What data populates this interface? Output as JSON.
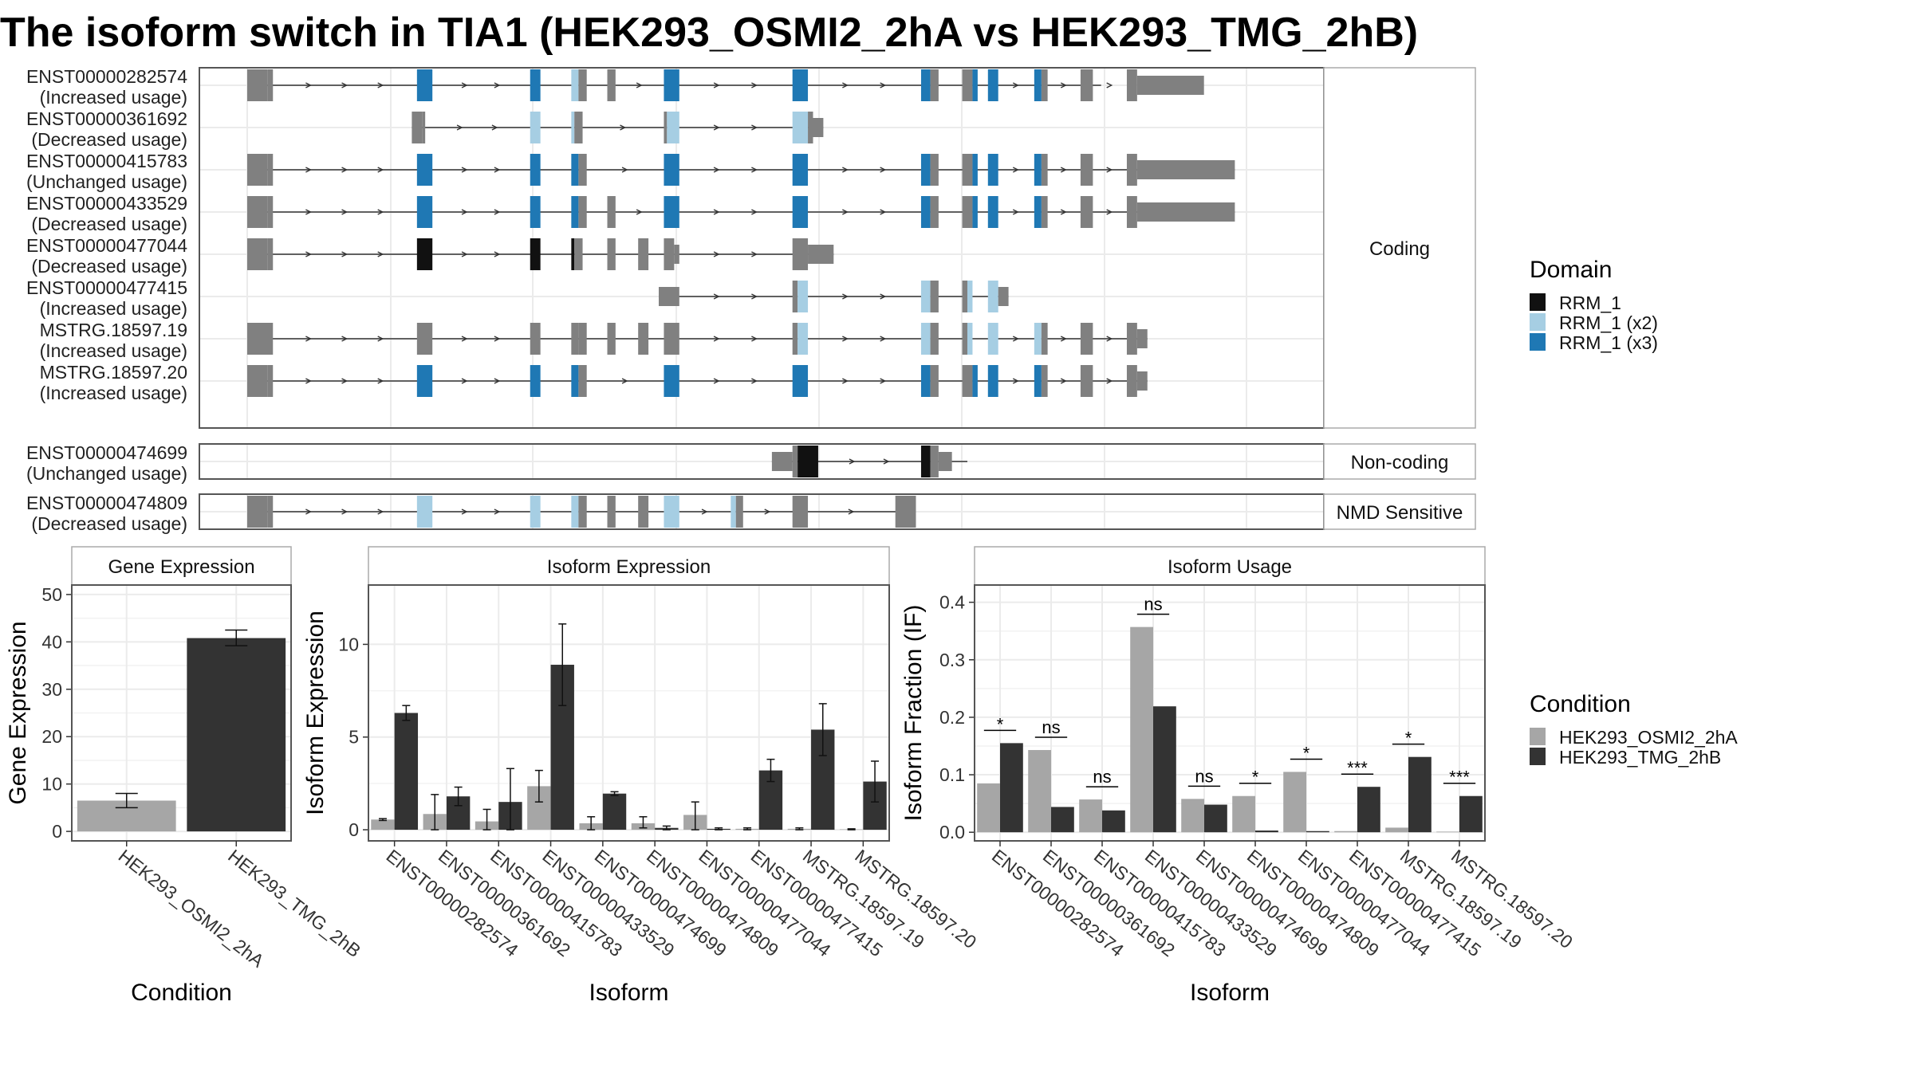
{
  "title": "The isoform switch in TIA1 (HEK293_OSMI2_2hA vs HEK293_TMG_2hB)",
  "colors": {
    "exon": "#808080",
    "RRM_1": "#111111",
    "RRM_1 (x2)": "#a6cee3",
    "RRM_1 (x3)": "#1f78b4",
    "HEK293_OSMI2_2hA": "#a6a6a6",
    "HEK293_TMG_2hB": "#333333",
    "panel_border": "#555555",
    "grid": "#ebebeb"
  },
  "structure": {
    "coding": {
      "label": "Coding",
      "transcripts": [
        {
          "id": "ENST00000282574",
          "usage": "(Increased usage)",
          "start": 0.0,
          "end": 0.83,
          "exons": [
            [
              0.0,
              0.02,
              "n"
            ],
            [
              0.02,
              0.025,
              "n"
            ],
            [
              0.165,
              0.18,
              "R3"
            ],
            [
              0.275,
              0.285,
              "R3"
            ],
            [
              0.315,
              0.322,
              "R2"
            ],
            [
              0.322,
              0.33,
              "n"
            ],
            [
              0.35,
              0.358,
              "n"
            ],
            [
              0.405,
              0.42,
              "R3"
            ],
            [
              0.53,
              0.545,
              "R3"
            ],
            [
              0.655,
              0.664,
              "R3"
            ],
            [
              0.664,
              0.672,
              "n"
            ],
            [
              0.695,
              0.705,
              "n"
            ],
            [
              0.705,
              0.71,
              "R3"
            ],
            [
              0.72,
              0.73,
              "R3"
            ],
            [
              0.765,
              0.772,
              "R3"
            ],
            [
              0.772,
              0.778,
              "n"
            ],
            [
              0.81,
              0.822,
              "n"
            ],
            [
              0.855,
              0.865,
              "n"
            ],
            [
              0.865,
              0.93,
              "u"
            ]
          ]
        },
        {
          "id": "ENST00000361692",
          "usage": "(Decreased usage)",
          "start": 0.16,
          "end": 0.56,
          "exons": [
            [
              0.16,
              0.17,
              "n"
            ],
            [
              0.17,
              0.173,
              "n"
            ],
            [
              0.275,
              0.285,
              "R2"
            ],
            [
              0.315,
              0.318,
              "R2"
            ],
            [
              0.318,
              0.326,
              "n"
            ],
            [
              0.405,
              0.408,
              "n"
            ],
            [
              0.408,
              0.42,
              "R2"
            ],
            [
              0.53,
              0.545,
              "R2"
            ],
            [
              0.545,
              0.55,
              "n"
            ],
            [
              0.55,
              0.56,
              "u"
            ]
          ]
        },
        {
          "id": "ENST00000415783",
          "usage": "(Unchanged usage)",
          "start": 0.0,
          "end": 0.96,
          "exons": [
            [
              0.0,
              0.02,
              "n"
            ],
            [
              0.02,
              0.025,
              "n"
            ],
            [
              0.165,
              0.18,
              "R3"
            ],
            [
              0.275,
              0.285,
              "R3"
            ],
            [
              0.315,
              0.322,
              "R3"
            ],
            [
              0.322,
              0.33,
              "n"
            ],
            [
              0.405,
              0.42,
              "R3"
            ],
            [
              0.53,
              0.545,
              "R3"
            ],
            [
              0.655,
              0.664,
              "R3"
            ],
            [
              0.664,
              0.672,
              "n"
            ],
            [
              0.695,
              0.705,
              "n"
            ],
            [
              0.705,
              0.71,
              "R3"
            ],
            [
              0.72,
              0.73,
              "R3"
            ],
            [
              0.765,
              0.772,
              "R3"
            ],
            [
              0.772,
              0.778,
              "n"
            ],
            [
              0.81,
              0.822,
              "n"
            ],
            [
              0.855,
              0.865,
              "n"
            ],
            [
              0.865,
              0.96,
              "u"
            ]
          ]
        },
        {
          "id": "ENST00000433529",
          "usage": "(Decreased usage)",
          "start": 0.0,
          "end": 0.96,
          "exons": [
            [
              0.0,
              0.02,
              "n"
            ],
            [
              0.02,
              0.025,
              "n"
            ],
            [
              0.165,
              0.18,
              "R3"
            ],
            [
              0.275,
              0.285,
              "R3"
            ],
            [
              0.315,
              0.322,
              "R3"
            ],
            [
              0.322,
              0.33,
              "n"
            ],
            [
              0.35,
              0.358,
              "n"
            ],
            [
              0.405,
              0.42,
              "R3"
            ],
            [
              0.53,
              0.545,
              "R3"
            ],
            [
              0.655,
              0.664,
              "R3"
            ],
            [
              0.664,
              0.672,
              "n"
            ],
            [
              0.695,
              0.705,
              "n"
            ],
            [
              0.705,
              0.71,
              "R3"
            ],
            [
              0.72,
              0.73,
              "R3"
            ],
            [
              0.765,
              0.772,
              "R3"
            ],
            [
              0.772,
              0.778,
              "n"
            ],
            [
              0.81,
              0.822,
              "n"
            ],
            [
              0.855,
              0.865,
              "n"
            ],
            [
              0.865,
              0.96,
              "u"
            ]
          ]
        },
        {
          "id": "ENST00000477044",
          "usage": "(Decreased usage)",
          "start": 0.0,
          "end": 0.57,
          "exons": [
            [
              0.0,
              0.02,
              "n"
            ],
            [
              0.02,
              0.025,
              "n"
            ],
            [
              0.165,
              0.18,
              "R1"
            ],
            [
              0.275,
              0.285,
              "R1"
            ],
            [
              0.315,
              0.318,
              "R1"
            ],
            [
              0.318,
              0.326,
              "n"
            ],
            [
              0.35,
              0.358,
              "n"
            ],
            [
              0.38,
              0.39,
              "n"
            ],
            [
              0.405,
              0.415,
              "n"
            ],
            [
              0.415,
              0.42,
              "u"
            ],
            [
              0.53,
              0.545,
              "n"
            ],
            [
              0.545,
              0.57,
              "u"
            ]
          ]
        },
        {
          "id": "ENST00000477415",
          "usage": "(Increased usage)",
          "start": 0.4,
          "end": 0.74,
          "exons": [
            [
              0.4,
              0.42,
              "u"
            ],
            [
              0.53,
              0.535,
              "n"
            ],
            [
              0.535,
              0.545,
              "R2"
            ],
            [
              0.655,
              0.664,
              "R2"
            ],
            [
              0.664,
              0.672,
              "n"
            ],
            [
              0.695,
              0.7,
              "n"
            ],
            [
              0.7,
              0.705,
              "R2"
            ],
            [
              0.72,
              0.73,
              "R2"
            ],
            [
              0.73,
              0.74,
              "u"
            ]
          ]
        },
        {
          "id": "MSTRG.18597.19",
          "usage": "(Increased usage)",
          "start": 0.0,
          "end": 0.875,
          "exons": [
            [
              0.0,
              0.025,
              "n"
            ],
            [
              0.165,
              0.18,
              "n"
            ],
            [
              0.275,
              0.285,
              "n"
            ],
            [
              0.315,
              0.322,
              "n"
            ],
            [
              0.322,
              0.33,
              "n"
            ],
            [
              0.35,
              0.358,
              "n"
            ],
            [
              0.38,
              0.39,
              "n"
            ],
            [
              0.405,
              0.42,
              "n"
            ],
            [
              0.53,
              0.535,
              "n"
            ],
            [
              0.535,
              0.545,
              "R2"
            ],
            [
              0.655,
              0.664,
              "R2"
            ],
            [
              0.664,
              0.672,
              "n"
            ],
            [
              0.695,
              0.7,
              "n"
            ],
            [
              0.7,
              0.705,
              "R2"
            ],
            [
              0.72,
              0.73,
              "R2"
            ],
            [
              0.765,
              0.772,
              "R2"
            ],
            [
              0.772,
              0.778,
              "n"
            ],
            [
              0.81,
              0.822,
              "n"
            ],
            [
              0.855,
              0.865,
              "n"
            ],
            [
              0.865,
              0.875,
              "u"
            ]
          ]
        },
        {
          "id": "MSTRG.18597.20",
          "usage": "(Increased usage)",
          "start": 0.0,
          "end": 0.875,
          "exons": [
            [
              0.0,
              0.02,
              "n"
            ],
            [
              0.02,
              0.025,
              "n"
            ],
            [
              0.165,
              0.18,
              "R3"
            ],
            [
              0.275,
              0.285,
              "R3"
            ],
            [
              0.315,
              0.322,
              "R3"
            ],
            [
              0.322,
              0.33,
              "n"
            ],
            [
              0.405,
              0.42,
              "R3"
            ],
            [
              0.53,
              0.545,
              "R3"
            ],
            [
              0.655,
              0.664,
              "R3"
            ],
            [
              0.664,
              0.672,
              "n"
            ],
            [
              0.695,
              0.705,
              "n"
            ],
            [
              0.705,
              0.71,
              "R3"
            ],
            [
              0.72,
              0.73,
              "R3"
            ],
            [
              0.765,
              0.772,
              "R3"
            ],
            [
              0.772,
              0.778,
              "n"
            ],
            [
              0.81,
              0.822,
              "n"
            ],
            [
              0.855,
              0.865,
              "n"
            ],
            [
              0.865,
              0.875,
              "u"
            ]
          ]
        }
      ]
    },
    "noncoding": {
      "label": "Non-coding",
      "transcripts": [
        {
          "id": "ENST00000474699",
          "usage": "(Unchanged usage)",
          "start": 0.51,
          "end": 0.7,
          "exons": [
            [
              0.51,
              0.53,
              "u"
            ],
            [
              0.53,
              0.535,
              "n"
            ],
            [
              0.535,
              0.555,
              "R1"
            ],
            [
              0.655,
              0.664,
              "R1"
            ],
            [
              0.664,
              0.672,
              "n"
            ],
            [
              0.672,
              0.685,
              "u"
            ]
          ]
        }
      ]
    },
    "nmd": {
      "label": "NMD Sensitive",
      "transcripts": [
        {
          "id": "ENST00000474809",
          "usage": "(Decreased usage)",
          "start": 0.0,
          "end": 0.65,
          "exons": [
            [
              0.0,
              0.02,
              "n"
            ],
            [
              0.02,
              0.025,
              "n"
            ],
            [
              0.165,
              0.18,
              "R2"
            ],
            [
              0.275,
              0.285,
              "R2"
            ],
            [
              0.315,
              0.322,
              "R2"
            ],
            [
              0.322,
              0.33,
              "n"
            ],
            [
              0.35,
              0.358,
              "n"
            ],
            [
              0.38,
              0.39,
              "n"
            ],
            [
              0.405,
              0.42,
              "R2"
            ],
            [
              0.47,
              0.475,
              "R2"
            ],
            [
              0.475,
              0.482,
              "n"
            ],
            [
              0.53,
              0.545,
              "n"
            ],
            [
              0.63,
              0.65,
              "n"
            ]
          ]
        }
      ]
    }
  },
  "domain_legend": {
    "title": "Domain",
    "entries": [
      "RRM_1",
      "RRM_1 (x2)",
      "RRM_1 (x3)"
    ]
  },
  "condition_legend": {
    "title": "Condition",
    "entries": [
      "HEK293_OSMI2_2hA",
      "HEK293_TMG_2hB"
    ]
  },
  "chart_data": [
    {
      "type": "bar",
      "title": "Gene Expression",
      "xlabel": "Condition",
      "ylabel": "Gene Expression",
      "categories": [
        "HEK293_OSMI2_2hA",
        "HEK293_TMG_2hB"
      ],
      "values": [
        6.5,
        40.8
      ],
      "errors": [
        [
          5.0,
          8.0
        ],
        [
          39.2,
          42.5
        ]
      ],
      "ylim": [
        -2,
        52
      ],
      "yticks": [
        0,
        10,
        20,
        30,
        40,
        50
      ]
    },
    {
      "type": "bar",
      "title": "Isoform Expression",
      "xlabel": "Isoform",
      "ylabel": "Isoform Expression",
      "categories": [
        "ENST00000282574",
        "ENST00000361692",
        "ENST00000415783",
        "ENST00000433529",
        "ENST00000474699",
        "ENST00000474809",
        "ENST00000477044",
        "ENST00000477415",
        "MSTRG.18597.19",
        "MSTRG.18597.20"
      ],
      "series": [
        {
          "name": "HEK293_OSMI2_2hA",
          "values": [
            0.55,
            0.85,
            0.45,
            2.35,
            0.35,
            0.35,
            0.8,
            0.05,
            0.05,
            0.02
          ],
          "errors": [
            [
              0.5,
              0.6
            ],
            [
              0.0,
              1.9
            ],
            [
              0.0,
              1.1
            ],
            [
              1.5,
              3.2
            ],
            [
              0.0,
              0.7
            ],
            [
              0.1,
              0.7
            ],
            [
              0.0,
              1.5
            ],
            [
              0.0,
              0.1
            ],
            [
              0.0,
              0.1
            ],
            [
              0.0,
              0.05
            ]
          ]
        },
        {
          "name": "HEK293_TMG_2hB",
          "values": [
            6.3,
            1.8,
            1.5,
            8.9,
            1.95,
            0.1,
            0.05,
            3.2,
            5.4,
            2.6
          ],
          "errors": [
            [
              5.9,
              6.7
            ],
            [
              1.3,
              2.3
            ],
            [
              0.0,
              3.3
            ],
            [
              6.7,
              11.1
            ],
            [
              1.85,
              2.05
            ],
            [
              0.0,
              0.2
            ],
            [
              0.0,
              0.1
            ],
            [
              2.6,
              3.8
            ],
            [
              4.0,
              6.8
            ],
            [
              1.5,
              3.7
            ]
          ]
        }
      ],
      "ylim": [
        -0.6,
        13.2
      ],
      "yticks": [
        0,
        5,
        10
      ]
    },
    {
      "type": "bar",
      "title": "Isoform Usage",
      "xlabel": "Isoform",
      "ylabel": "Isoform Fraction (IF)",
      "categories": [
        "ENST00000282574",
        "ENST00000361692",
        "ENST00000415783",
        "ENST00000433529",
        "ENST00000474699",
        "ENST00000474809",
        "ENST00000477044",
        "ENST00000477415",
        "MSTRG.18597.19",
        "MSTRG.18597.20"
      ],
      "series": [
        {
          "name": "HEK293_OSMI2_2hA",
          "values": [
            0.085,
            0.143,
            0.057,
            0.357,
            0.058,
            0.063,
            0.105,
            0.002,
            0.008,
            0.001
          ]
        },
        {
          "name": "HEK293_TMG_2hB",
          "values": [
            0.155,
            0.044,
            0.038,
            0.219,
            0.048,
            0.003,
            0.002,
            0.079,
            0.131,
            0.063
          ]
        }
      ],
      "significance": [
        "*",
        "ns",
        "ns",
        "ns",
        "ns",
        "*",
        "*",
        "***",
        "*",
        "***"
      ],
      "ylim": [
        -0.015,
        0.43
      ],
      "yticks": [
        0.0,
        0.1,
        0.2,
        0.3,
        0.4
      ],
      "ytick_labels": [
        "0.0",
        "0.1",
        "0.2",
        "0.3",
        "0.4"
      ]
    }
  ]
}
